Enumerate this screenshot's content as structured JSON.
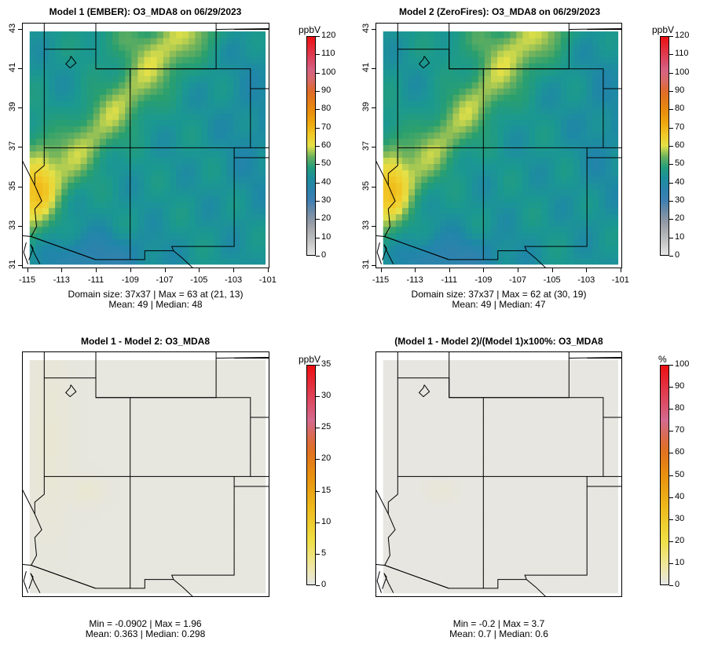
{
  "chart_data": [
    {
      "type": "heatmap",
      "title": "Model 1 (EMBER): O3_MDA8 on 06/29/2023",
      "colorbar_label": "ppbV",
      "colorbar_ticks": [
        "0",
        "10",
        "20",
        "30",
        "40",
        "50",
        "60",
        "70",
        "80",
        "90",
        "100",
        "110",
        "120"
      ],
      "colorbar_range": [
        0,
        120
      ],
      "x_ticks": [
        "-115",
        "-113",
        "-111",
        "-109",
        "-107",
        "-105",
        "-103",
        "-101"
      ],
      "y_ticks": [
        "31",
        "33",
        "35",
        "37",
        "39",
        "41",
        "43"
      ],
      "stats_line1": "Domain size: 37x37 | Max = 63 at (21, 13)",
      "stats_line2": "Mean: 49 |  Median: 48",
      "grid_size": [
        37,
        37
      ],
      "mean": 49,
      "median": 48,
      "max": 63
    },
    {
      "type": "heatmap",
      "title": "Model 2 (ZeroFires): O3_MDA8 on 06/29/2023",
      "colorbar_label": "ppbV",
      "colorbar_ticks": [
        "0",
        "10",
        "20",
        "30",
        "40",
        "50",
        "60",
        "70",
        "80",
        "90",
        "100",
        "110",
        "120"
      ],
      "colorbar_range": [
        0,
        120
      ],
      "x_ticks": [
        "-115",
        "-113",
        "-111",
        "-109",
        "-107",
        "-105",
        "-103",
        "-101"
      ],
      "y_ticks": [
        "31",
        "33",
        "35",
        "37",
        "39",
        "41",
        "43"
      ],
      "stats_line1": "Domain size: 37x37 | Max = 62 at (30, 19)",
      "stats_line2": "Mean: 49 |  Median: 47",
      "grid_size": [
        37,
        37
      ],
      "mean": 49,
      "median": 47,
      "max": 62
    },
    {
      "type": "heatmap",
      "title": "Model 1 - Model 2: O3_MDA8",
      "colorbar_label": "ppbV",
      "colorbar_ticks": [
        "0",
        "5",
        "10",
        "15",
        "20",
        "25",
        "30",
        "35"
      ],
      "colorbar_range": [
        0,
        35
      ],
      "stats_line1": "Min = -0.0902 | Max = 1.96",
      "stats_line2": "Mean: 0.363 |  Median: 0.298",
      "min": -0.0902,
      "max": 1.96,
      "mean": 0.363,
      "median": 0.298
    },
    {
      "type": "heatmap",
      "title": "(Model 1 - Model 2)/(Model 1)x100%: O3_MDA8",
      "colorbar_label": "%",
      "colorbar_ticks": [
        "0",
        "10",
        "20",
        "30",
        "40",
        "50",
        "60",
        "70",
        "80",
        "90",
        "100"
      ],
      "colorbar_range": [
        0,
        100
      ],
      "stats_line1": "Min = -0.2 | Max = 3.7",
      "stats_line2": "Mean: 0.7 |  Median: 0.6",
      "min": -0.2,
      "max": 3.7,
      "mean": 0.7,
      "median": 0.6
    }
  ]
}
